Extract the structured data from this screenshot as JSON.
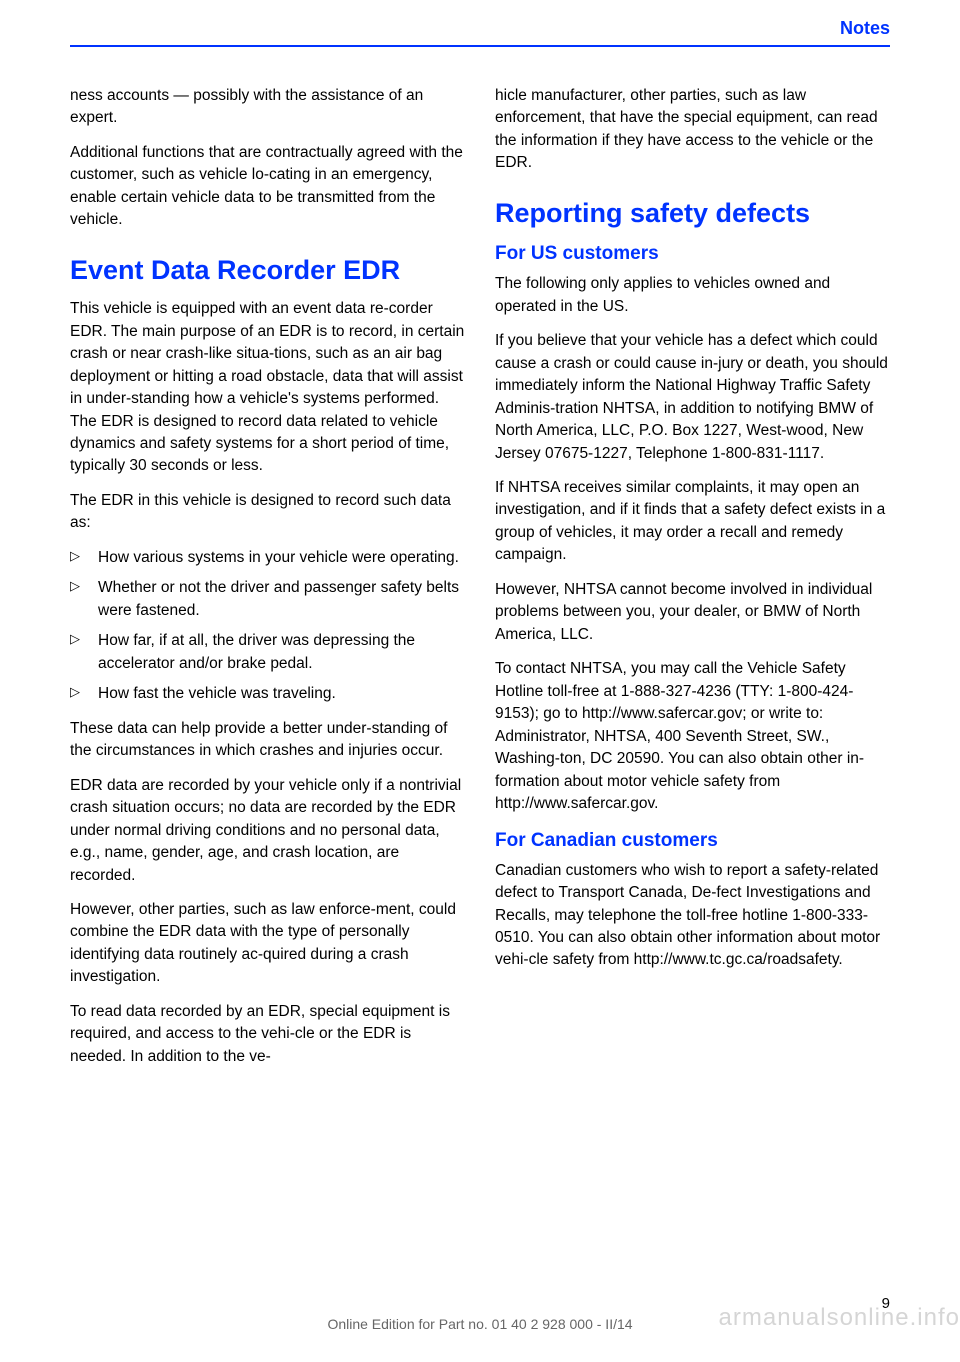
{
  "header": {
    "section_title": "Notes"
  },
  "left_column": {
    "p1": "ness accounts — possibly with the assistance of an expert.",
    "p2": "Additional functions that are contractually agreed with the customer, such as vehicle lo‐cating in an emergency, enable certain vehicle data to be transmitted from the vehicle.",
    "h1_1": "Event Data Recorder EDR",
    "p3": "This vehicle is equipped with an event data re‐corder EDR. The main purpose of an EDR is to record, in certain crash or near crash-like situa‐tions, such as an air bag deployment or hitting a road obstacle, data that will assist in under‐standing how a vehicle's systems performed. The EDR is designed to record data related to vehicle dynamics and safety systems for a short period of time, typically 30 seconds or less.",
    "p4": "The EDR in this vehicle is designed to record such data as:",
    "bullets": [
      "How various systems in your vehicle were operating.",
      "Whether or not the driver and passenger safety belts were fastened.",
      "How far, if at all, the driver was depressing the accelerator and/or brake pedal.",
      "How fast the vehicle was traveling."
    ],
    "p5": "These data can help provide a better under‐standing of the circumstances in which crashes and injuries occur.",
    "p6": "EDR data are recorded by your vehicle only if a nontrivial crash situation occurs; no data are recorded by the EDR under normal driving conditions and no personal data, e.g., name, gender, age, and crash location, are recorded.",
    "p7": "However, other parties, such as law enforce‐ment, could combine the EDR data with the type of personally identifying data routinely ac‐quired during a crash investigation.",
    "p8": "To read data recorded by an EDR, special equipment is required, and access to the vehi‐cle or the EDR is needed. In addition to the ve‐"
  },
  "right_column": {
    "p1": "hicle manufacturer, other parties, such as law enforcement, that have the special equipment, can read the information if they have access to the vehicle or the EDR.",
    "h1_1": "Reporting safety defects",
    "h2_1": "For US customers",
    "p2": "The following only applies to vehicles owned and operated in the US.",
    "p3": "If you believe that your vehicle has a defect which could cause a crash or could cause in‐jury or death, you should immediately inform the National Highway Traffic Safety Adminis‐tration NHTSA, in addition to notifying BMW of North America, LLC, P.O. Box 1227, West‐wood, New Jersey 07675-1227, Telephone 1-800-831-1117.",
    "p4": "If NHTSA receives similar complaints, it may open an investigation, and if it finds that a safety defect exists in a group of vehicles, it may order a recall and remedy campaign.",
    "p5": "However, NHTSA cannot become involved in individual problems between you, your dealer, or BMW of North America, LLC.",
    "p6": "To contact NHTSA, you may call the Vehicle Safety Hotline toll-free at 1-888-327-4236 (TTY: 1-800-424-9153); go to http://www.safercar.gov; or write to: Administrator, NHTSA, 400 Seventh Street, SW., Washing‐ton, DC 20590. You can also obtain other in‐formation about motor vehicle safety from http://www.safercar.gov.",
    "h2_2": "For Canadian customers",
    "p7": "Canadian customers who wish to report a safety-related defect to Transport Canada, De‐fect Investigations and Recalls, may telephone the toll-free hotline 1-800-333-0510. You can also obtain other information about motor vehi‐cle safety from http://www.tc.gc.ca/roadsafety."
  },
  "footer": {
    "page_number": "9",
    "edition_text": "Online Edition for Part no. 01 40 2 928 000 - II/14",
    "watermark": "armanualsonline.info"
  },
  "bullet_marker": "▷"
}
